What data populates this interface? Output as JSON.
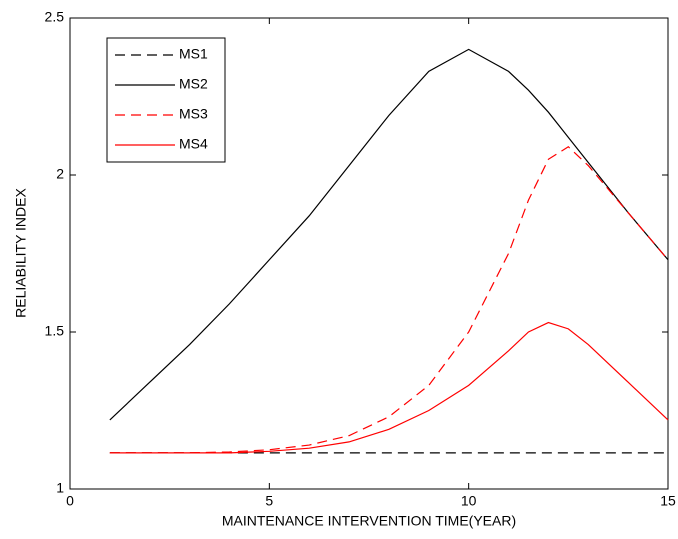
{
  "chart_data": {
    "type": "line",
    "xlabel": "MAINTENANCE INTERVENTION TIME(YEAR)",
    "ylabel": "RELIABILITY INDEX",
    "x": [
      1,
      2,
      3,
      4,
      5,
      6,
      7,
      8,
      9,
      10,
      11,
      11.5,
      12,
      12.5,
      13,
      14,
      15
    ],
    "series": [
      {
        "name": "MS1",
        "color": "#000000",
        "line_style": "dashed",
        "values": [
          1.115,
          1.115,
          1.115,
          1.115,
          1.115,
          1.115,
          1.115,
          1.115,
          1.115,
          1.115,
          1.115,
          1.115,
          1.115,
          1.115,
          1.115,
          1.115,
          1.115
        ]
      },
      {
        "name": "MS2",
        "color": "#000000",
        "line_style": "solid",
        "values": [
          1.22,
          1.34,
          1.46,
          1.59,
          1.73,
          1.87,
          2.03,
          2.19,
          2.33,
          2.4,
          2.33,
          2.27,
          2.2,
          2.12,
          2.04,
          1.88,
          1.73
        ]
      },
      {
        "name": "MS3",
        "color": "#ff0000",
        "line_style": "dashed",
        "values": [
          1.115,
          1.115,
          1.115,
          1.118,
          1.125,
          1.14,
          1.17,
          1.23,
          1.33,
          1.5,
          1.75,
          1.92,
          2.05,
          2.09,
          2.03,
          1.88,
          1.73
        ]
      },
      {
        "name": "MS4",
        "color": "#ff0000",
        "line_style": "solid",
        "values": [
          1.115,
          1.115,
          1.115,
          1.115,
          1.12,
          1.13,
          1.15,
          1.19,
          1.25,
          1.33,
          1.44,
          1.5,
          1.53,
          1.51,
          1.46,
          1.34,
          1.22
        ]
      }
    ],
    "xlim": [
      0,
      15
    ],
    "xticks": [
      0,
      5,
      10,
      15
    ],
    "ylim": [
      1,
      2.5
    ],
    "yticks": [
      1,
      1.5,
      2,
      2.5
    ],
    "grid": false,
    "legend_position": "upper-left"
  }
}
